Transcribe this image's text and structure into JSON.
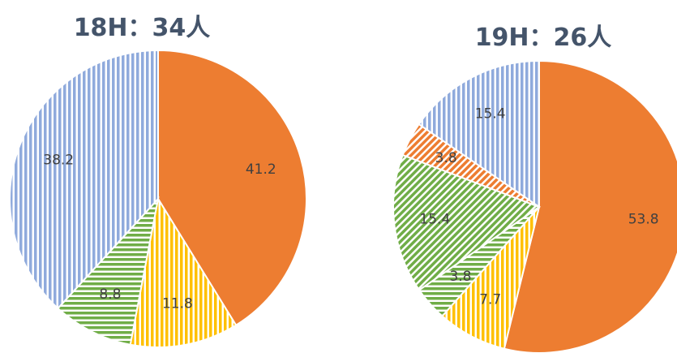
{
  "chart_data": [
    {
      "type": "pie",
      "title": "18H：34人",
      "values": [
        41.2,
        11.8,
        8.8,
        38.2
      ],
      "colors": [
        "#ED7D31",
        "#FFC000",
        "#70AD47",
        "#8FAADC"
      ],
      "patterns": [
        "solid",
        "vertical",
        "horizontal",
        "vertical"
      ]
    },
    {
      "type": "pie",
      "title": "19H：26人",
      "values": [
        53.8,
        7.7,
        3.8,
        15.4,
        3.8,
        15.4
      ],
      "colors": [
        "#ED7D31",
        "#FFC000",
        "#70AD47",
        "#70AD47",
        "#ED7D31",
        "#8FAADC"
      ],
      "patterns": [
        "solid",
        "vertical",
        "horizontal",
        "diagonal",
        "diagonal",
        "vertical"
      ]
    }
  ]
}
